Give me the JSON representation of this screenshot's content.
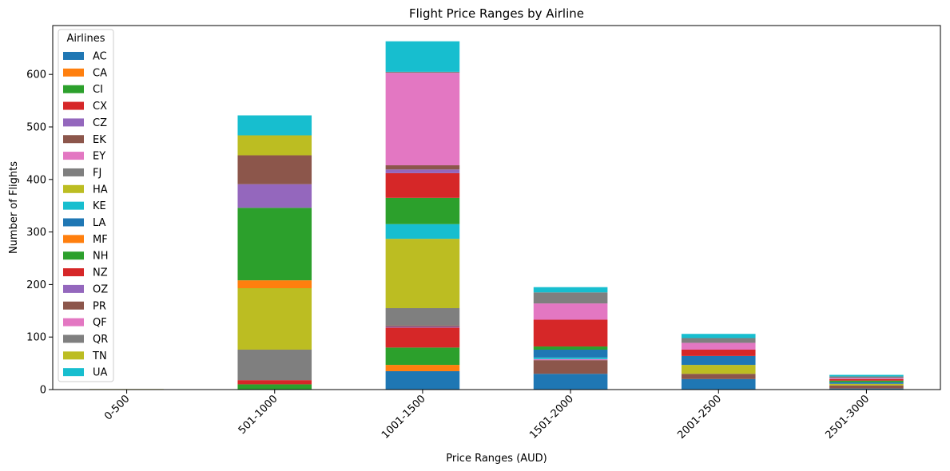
{
  "chart_data": {
    "type": "bar",
    "stacked": true,
    "title": "Flight Price Ranges by Airline",
    "xlabel": "Price Ranges (AUD)",
    "ylabel": "Number of Flights",
    "ylim": [
      0,
      693
    ],
    "yticks": [
      0,
      100,
      200,
      300,
      400,
      500,
      600
    ],
    "grid": false,
    "legend": {
      "title": "Airlines",
      "position": "top-left"
    },
    "categories": [
      "0-500",
      "501-1000",
      "1001-1500",
      "1501-2000",
      "2001-2500",
      "2501-3000"
    ],
    "series": [
      {
        "name": "AC",
        "color": "#1f77b4",
        "values": [
          0,
          0,
          35,
          30,
          20,
          2
        ]
      },
      {
        "name": "CA",
        "color": "#ff7f0e",
        "values": [
          0,
          0,
          12,
          0,
          0,
          0
        ]
      },
      {
        "name": "CI",
        "color": "#2ca02c",
        "values": [
          0,
          10,
          33,
          0,
          0,
          0
        ]
      },
      {
        "name": "CX",
        "color": "#d62728",
        "values": [
          0,
          8,
          38,
          0,
          0,
          0
        ]
      },
      {
        "name": "CZ",
        "color": "#9467bd",
        "values": [
          0,
          0,
          2,
          0,
          0,
          0
        ]
      },
      {
        "name": "EK",
        "color": "#8c564b",
        "values": [
          0,
          0,
          2,
          26,
          10,
          6
        ]
      },
      {
        "name": "EY",
        "color": "#e377c2",
        "values": [
          0,
          0,
          0,
          2,
          0,
          0
        ]
      },
      {
        "name": "FJ",
        "color": "#7f7f7f",
        "values": [
          0,
          58,
          33,
          0,
          0,
          0
        ]
      },
      {
        "name": "HA",
        "color": "#bcbd22",
        "values": [
          1,
          117,
          132,
          0,
          17,
          3
        ]
      },
      {
        "name": "KE",
        "color": "#17becf",
        "values": [
          0,
          0,
          28,
          3,
          0,
          0
        ]
      },
      {
        "name": "LA",
        "color": "#1f77b4",
        "values": [
          0,
          0,
          0,
          15,
          17,
          3
        ]
      },
      {
        "name": "MF",
        "color": "#ff7f0e",
        "values": [
          0,
          15,
          0,
          0,
          0,
          0
        ]
      },
      {
        "name": "NH",
        "color": "#2ca02c",
        "values": [
          0,
          138,
          50,
          6,
          0,
          3
        ]
      },
      {
        "name": "NZ",
        "color": "#d62728",
        "values": [
          0,
          0,
          47,
          51,
          12,
          3
        ]
      },
      {
        "name": "OZ",
        "color": "#9467bd",
        "values": [
          0,
          45,
          7,
          0,
          0,
          0
        ]
      },
      {
        "name": "PR",
        "color": "#8c564b",
        "values": [
          0,
          55,
          8,
          0,
          0,
          0
        ]
      },
      {
        "name": "QF",
        "color": "#e377c2",
        "values": [
          0,
          0,
          176,
          31,
          13,
          2
        ]
      },
      {
        "name": "QR",
        "color": "#7f7f7f",
        "values": [
          0,
          0,
          2,
          21,
          9,
          3
        ]
      },
      {
        "name": "TN",
        "color": "#bcbd22",
        "values": [
          0,
          38,
          0,
          0,
          0,
          0
        ]
      },
      {
        "name": "UA",
        "color": "#17becf",
        "values": [
          0,
          38,
          58,
          10,
          8,
          3
        ]
      }
    ]
  }
}
